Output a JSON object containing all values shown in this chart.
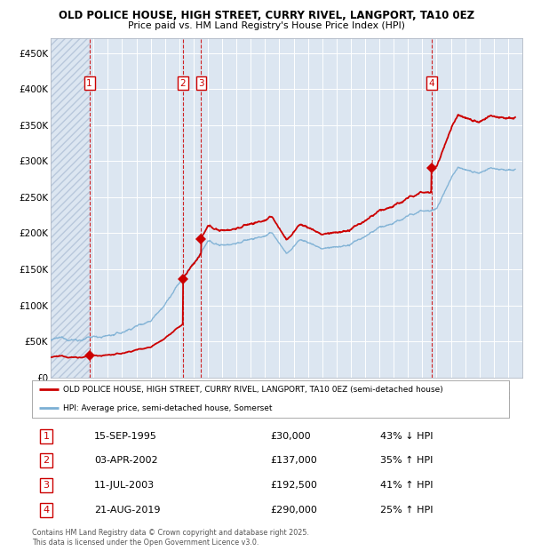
{
  "title1": "OLD POLICE HOUSE, HIGH STREET, CURRY RIVEL, LANGPORT, TA10 0EZ",
  "title2": "Price paid vs. HM Land Registry's House Price Index (HPI)",
  "property_color": "#cc0000",
  "hpi_color": "#7bafd4",
  "plot_bg_color": "#dce6f1",
  "transactions": [
    {
      "num": 1,
      "date": "15-SEP-1995",
      "price": 30000,
      "pct": "43% ↓ HPI",
      "x_year": 1995.71
    },
    {
      "num": 2,
      "date": "03-APR-2002",
      "price": 137000,
      "pct": "35% ↑ HPI",
      "x_year": 2002.25
    },
    {
      "num": 3,
      "date": "11-JUL-2003",
      "price": 192500,
      "pct": "41% ↑ HPI",
      "x_year": 2003.53
    },
    {
      "num": 4,
      "date": "21-AUG-2019",
      "price": 290000,
      "pct": "25% ↑ HPI",
      "x_year": 2019.64
    }
  ],
  "legend_property": "OLD POLICE HOUSE, HIGH STREET, CURRY RIVEL, LANGPORT, TA10 0EZ (semi-detached house)",
  "legend_hpi": "HPI: Average price, semi-detached house, Somerset",
  "footnote": "Contains HM Land Registry data © Crown copyright and database right 2025.\nThis data is licensed under the Open Government Licence v3.0.",
  "ylim": [
    0,
    470000
  ],
  "yticks": [
    0,
    50000,
    100000,
    150000,
    200000,
    250000,
    300000,
    350000,
    400000,
    450000
  ],
  "xlim": [
    1993,
    2026
  ],
  "xticks": [
    1993,
    1994,
    1995,
    1996,
    1997,
    1998,
    1999,
    2000,
    2001,
    2002,
    2003,
    2004,
    2005,
    2006,
    2007,
    2008,
    2009,
    2010,
    2011,
    2012,
    2013,
    2014,
    2015,
    2016,
    2017,
    2018,
    2019,
    2020,
    2021,
    2022,
    2023,
    2024,
    2025
  ]
}
